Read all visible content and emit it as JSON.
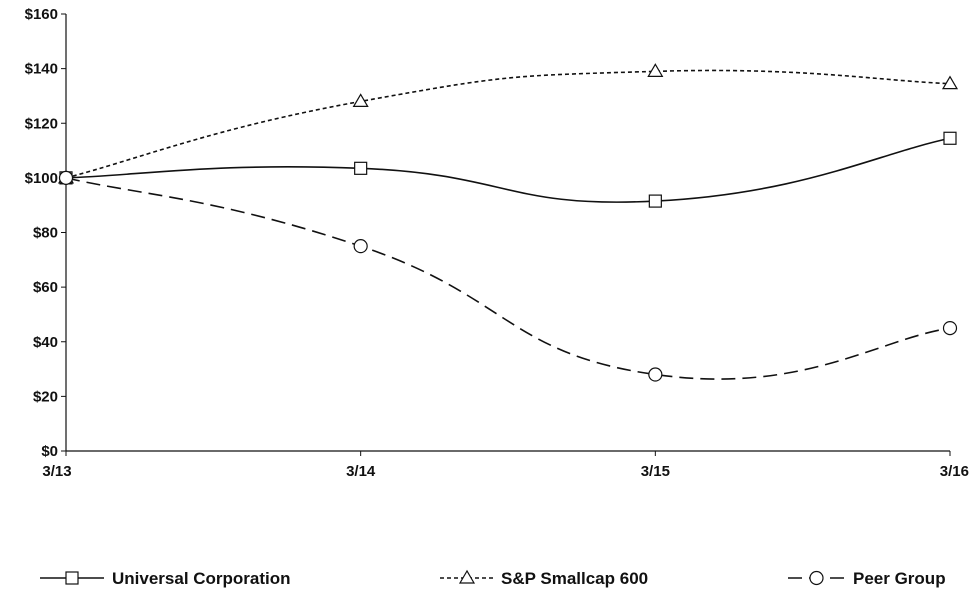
{
  "chart_data": {
    "type": "line",
    "title": "",
    "xlabel": "",
    "ylabel": "",
    "categories": [
      "3/13",
      "3/14",
      "3/15",
      "3/16"
    ],
    "ylim": [
      0,
      160
    ],
    "y_ticks": [
      0,
      20,
      40,
      60,
      80,
      100,
      120,
      140,
      160
    ],
    "y_tick_labels": [
      "$0",
      "$20",
      "$40",
      "$60",
      "$80",
      "$100",
      "$120",
      "$140",
      "$160"
    ],
    "grid": false,
    "legend_position": "bottom",
    "series": [
      {
        "name": "Universal Corporation",
        "values": [
          100,
          103.5,
          91.5,
          114.5
        ],
        "marker": "square",
        "line_style": "solid",
        "color": "#111111"
      },
      {
        "name": "S&P Smallcap 600",
        "values": [
          100,
          128,
          139,
          134.5
        ],
        "marker": "triangle",
        "line_style": "dotted",
        "color": "#111111"
      },
      {
        "name": "Peer Group",
        "values": [
          100,
          75,
          28,
          45
        ],
        "marker": "circle",
        "line_style": "dashed",
        "color": "#111111"
      }
    ]
  }
}
